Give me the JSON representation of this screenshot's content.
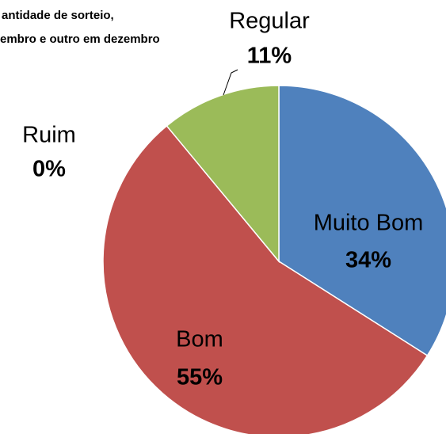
{
  "chart_data": {
    "type": "pie",
    "title_lines": [
      "antidade de sorteio,",
      "embro e outro em dezembro"
    ],
    "categories": [
      "Muito Bom",
      "Bom",
      "Ruim",
      "Regular"
    ],
    "values": [
      34,
      55,
      0,
      11
    ],
    "value_labels": [
      "34%",
      "55%",
      "0%",
      "11%"
    ],
    "colors": [
      "#4f81bd",
      "#c0504d",
      "#8064a2",
      "#9bbb59"
    ],
    "start_angle": 0,
    "direction": "clockwise"
  }
}
